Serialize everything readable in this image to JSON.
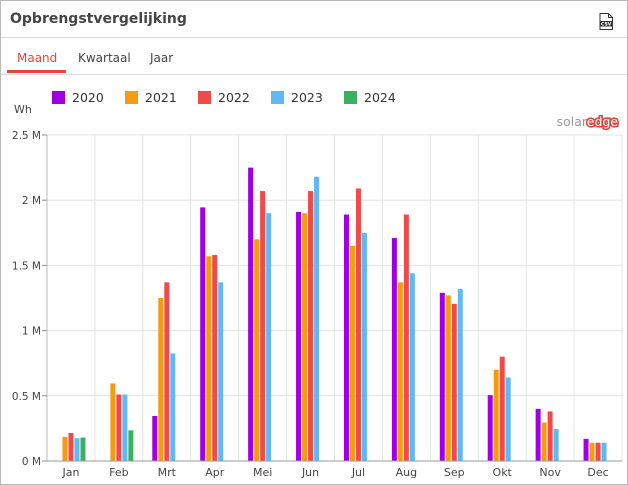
{
  "widget": {
    "title": "Opbrengstvergelijking",
    "csv_label": "CSV"
  },
  "tabs": [
    {
      "label": "Maand",
      "active": true
    },
    {
      "label": "Kwartaal",
      "active": false
    },
    {
      "label": "Jaar",
      "active": false
    }
  ],
  "logo": {
    "part1": "solar",
    "part2": "edge"
  },
  "colors": {
    "accent": "#e0473f",
    "2020": "#a000e0",
    "2021": "#f39c12",
    "2022": "#ef4b4b",
    "2023": "#62b8f2",
    "2024": "#3cb061"
  },
  "chart_data": {
    "type": "bar",
    "ylabel": "Wh",
    "ylim": [
      0,
      2500000
    ],
    "yticks": [
      {
        "value": 0,
        "label": "0 M"
      },
      {
        "value": 500000,
        "label": "0.5 M"
      },
      {
        "value": 1000000,
        "label": "1 M"
      },
      {
        "value": 1500000,
        "label": "1.5 M"
      },
      {
        "value": 2000000,
        "label": "2 M"
      },
      {
        "value": 2500000,
        "label": "2.5 M"
      }
    ],
    "grid": true,
    "legend": "top-left",
    "categories": [
      "Jan",
      "Feb",
      "Mrt",
      "Apr",
      "Mei",
      "Jun",
      "Jul",
      "Aug",
      "Sep",
      "Okt",
      "Nov",
      "Dec"
    ],
    "series": [
      {
        "name": "2020",
        "color": "#a000e0",
        "values": [
          null,
          null,
          345000,
          1945000,
          2250000,
          1910000,
          1890000,
          1710000,
          1290000,
          505000,
          400000,
          170000
        ]
      },
      {
        "name": "2021",
        "color": "#f39c12",
        "values": [
          185000,
          595000,
          1250000,
          1570000,
          1700000,
          1900000,
          1650000,
          1370000,
          1270000,
          700000,
          295000,
          140000
        ]
      },
      {
        "name": "2022",
        "color": "#ef4b4b",
        "values": [
          215000,
          510000,
          1370000,
          1580000,
          2070000,
          2070000,
          2090000,
          1890000,
          1205000,
          800000,
          380000,
          140000
        ]
      },
      {
        "name": "2023",
        "color": "#62b8f2",
        "values": [
          175000,
          510000,
          825000,
          1370000,
          1900000,
          2180000,
          1750000,
          1440000,
          1320000,
          640000,
          245000,
          140000
        ]
      },
      {
        "name": "2024",
        "color": "#3cb061",
        "values": [
          180000,
          235000,
          null,
          null,
          null,
          null,
          null,
          null,
          null,
          null,
          null,
          null
        ]
      }
    ]
  }
}
